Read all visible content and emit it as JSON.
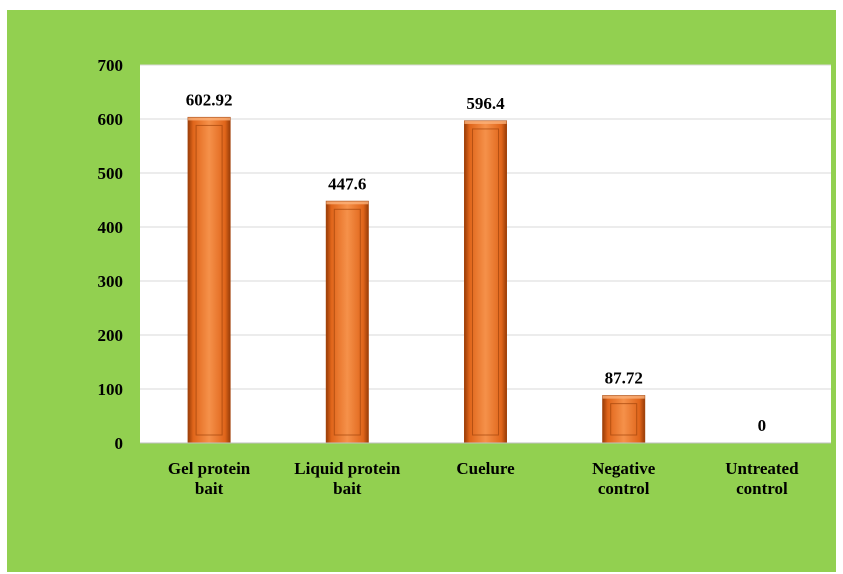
{
  "chart_data": {
    "type": "bar",
    "categories": [
      [
        "Gel protein",
        "bait"
      ],
      [
        "Liquid protein",
        "bait"
      ],
      [
        "Cuelure"
      ],
      [
        "Negative",
        "control"
      ],
      [
        "Untreated",
        "control"
      ]
    ],
    "values": [
      602.92,
      447.6,
      596.4,
      87.72,
      0
    ],
    "data_labels": [
      "602.92",
      "447.6",
      "596.4",
      "87.72",
      "0"
    ],
    "ylim": [
      0,
      700
    ],
    "yticks": [
      0,
      100,
      200,
      300,
      400,
      500,
      600,
      700
    ],
    "grid": true,
    "legend": "none",
    "colors": {
      "background": "#92d050",
      "plot_area": "#ffffff",
      "bar_fill": "#f07a2a",
      "bar_dark": "#a3440c",
      "bar_light": "#fbb27a",
      "grid": "#d9d9d9"
    }
  }
}
